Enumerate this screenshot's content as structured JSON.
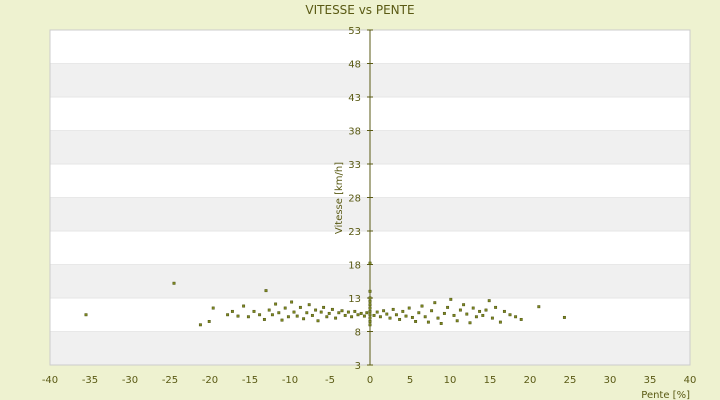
{
  "chart_data": {
    "type": "scatter",
    "title": "VITESSE vs PENTE",
    "xlabel": "Pente [%]",
    "ylabel": "Vitesse [km/h]",
    "xlim": [
      -40,
      40
    ],
    "ylim": [
      3,
      53
    ],
    "xticks": [
      "-40",
      "-35",
      "-30",
      "-25",
      "-20",
      "-15",
      "-10",
      "-5",
      "0",
      "5",
      "10",
      "15",
      "20",
      "25",
      "30",
      "35",
      "40"
    ],
    "yticks": [
      "3",
      "8",
      "13",
      "18",
      "23",
      "28",
      "33",
      "38",
      "43",
      "48",
      "53"
    ],
    "grid": "horizontal bands",
    "colors": {
      "background": "#eef2d0",
      "plot_band_light": "#ffffff",
      "plot_band_dark": "#f0f0f0",
      "point": "#808a20",
      "axis": "#5a5a14"
    },
    "series": [
      {
        "points": [
          [
            -35.5,
            10.5
          ],
          [
            -24.5,
            15.2
          ],
          [
            -21.2,
            9.0
          ],
          [
            -20.1,
            9.5
          ],
          [
            -19.6,
            11.5
          ],
          [
            -17.8,
            10.5
          ],
          [
            -17.2,
            11.0
          ],
          [
            -16.5,
            10.3
          ],
          [
            -15.8,
            11.8
          ],
          [
            -15.2,
            10.2
          ],
          [
            -14.5,
            11.0
          ],
          [
            -13.8,
            10.5
          ],
          [
            -13.2,
            9.8
          ],
          [
            -13.0,
            14.1
          ],
          [
            -12.6,
            11.2
          ],
          [
            -12.2,
            10.5
          ],
          [
            -11.8,
            12.1
          ],
          [
            -11.4,
            10.8
          ],
          [
            -11.0,
            9.7
          ],
          [
            -10.6,
            11.5
          ],
          [
            -10.2,
            10.2
          ],
          [
            -9.8,
            12.4
          ],
          [
            -9.5,
            10.9
          ],
          [
            -9.1,
            10.3
          ],
          [
            -8.7,
            11.6
          ],
          [
            -8.3,
            9.9
          ],
          [
            -7.9,
            10.8
          ],
          [
            -7.6,
            12.0
          ],
          [
            -7.2,
            10.4
          ],
          [
            -6.8,
            11.2
          ],
          [
            -6.5,
            9.6
          ],
          [
            -6.1,
            10.9
          ],
          [
            -5.8,
            11.6
          ],
          [
            -5.4,
            10.2
          ],
          [
            -5.1,
            10.7
          ],
          [
            -4.7,
            11.3
          ],
          [
            -4.3,
            10.0
          ],
          [
            -3.9,
            10.8
          ],
          [
            -3.5,
            11.1
          ],
          [
            -3.1,
            10.4
          ],
          [
            -2.7,
            10.9
          ],
          [
            -2.3,
            10.2
          ],
          [
            -1.9,
            11.0
          ],
          [
            -1.5,
            10.5
          ],
          [
            -1.1,
            10.7
          ],
          [
            -0.7,
            10.3
          ],
          [
            -0.4,
            10.8
          ],
          [
            0,
            9.0
          ],
          [
            0,
            9.5
          ],
          [
            0,
            10.0
          ],
          [
            0,
            10.5
          ],
          [
            0,
            11.0
          ],
          [
            0,
            11.5
          ],
          [
            0,
            12.0
          ],
          [
            0,
            12.5
          ],
          [
            0,
            13.0
          ],
          [
            0,
            14.0
          ],
          [
            0,
            18.2
          ],
          [
            0.5,
            10.4
          ],
          [
            0.9,
            10.9
          ],
          [
            1.3,
            10.2
          ],
          [
            1.7,
            11.1
          ],
          [
            2.1,
            10.6
          ],
          [
            2.5,
            10.0
          ],
          [
            2.9,
            11.3
          ],
          [
            3.3,
            10.5
          ],
          [
            3.7,
            9.8
          ],
          [
            4.1,
            11.0
          ],
          [
            4.5,
            10.3
          ],
          [
            4.9,
            11.5
          ],
          [
            5.3,
            10.1
          ],
          [
            5.7,
            9.5
          ],
          [
            6.1,
            10.8
          ],
          [
            6.5,
            11.8
          ],
          [
            6.9,
            10.2
          ],
          [
            7.3,
            9.4
          ],
          [
            7.7,
            11.1
          ],
          [
            8.1,
            12.3
          ],
          [
            8.5,
            10.0
          ],
          [
            8.9,
            9.2
          ],
          [
            9.3,
            10.7
          ],
          [
            9.7,
            11.6
          ],
          [
            10.1,
            12.8
          ],
          [
            10.5,
            10.4
          ],
          [
            10.9,
            9.6
          ],
          [
            11.3,
            11.2
          ],
          [
            11.7,
            12.0
          ],
          [
            12.1,
            10.6
          ],
          [
            12.5,
            9.3
          ],
          [
            12.9,
            11.5
          ],
          [
            13.3,
            10.2
          ],
          [
            13.7,
            11.0
          ],
          [
            14.1,
            10.4
          ],
          [
            14.5,
            11.2
          ],
          [
            14.9,
            12.6
          ],
          [
            15.3,
            10.0
          ],
          [
            15.7,
            11.6
          ],
          [
            16.3,
            9.4
          ],
          [
            16.8,
            11.0
          ],
          [
            17.5,
            10.5
          ],
          [
            18.2,
            10.2
          ],
          [
            18.9,
            9.8
          ],
          [
            21.1,
            11.7
          ],
          [
            24.3,
            10.1
          ]
        ]
      }
    ]
  }
}
